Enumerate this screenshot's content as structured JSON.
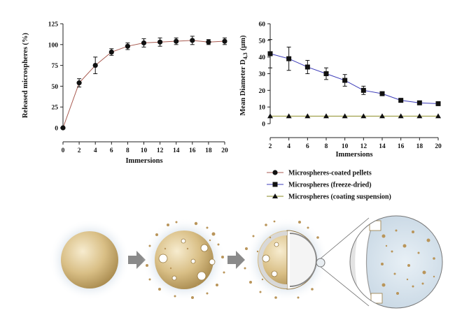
{
  "chart_data": [
    {
      "type": "line",
      "xlabel": "Immersions",
      "ylabel": "Released microspheres (%)",
      "xlim": [
        0,
        20
      ],
      "ylim": [
        0,
        125
      ],
      "xticks": [
        "0",
        "2",
        "4",
        "6",
        "8",
        "10",
        "12",
        "14",
        "16",
        "18",
        "20"
      ],
      "yticks": [
        "0",
        "25",
        "50",
        "75",
        "100",
        "125"
      ],
      "grid": false,
      "series": [
        {
          "name": "Microspheres-coated pellets",
          "marker": "circle",
          "color": "#a85a50",
          "x": [
            0,
            2,
            4,
            6,
            8,
            10,
            12,
            14,
            16,
            18,
            20
          ],
          "y": [
            0,
            54,
            75,
            91,
            98,
            102,
            103,
            104,
            105,
            103,
            104
          ],
          "err": [
            0,
            5,
            10,
            4,
            4,
            5,
            5,
            4,
            5,
            3,
            4
          ]
        }
      ]
    },
    {
      "type": "line",
      "xlabel": "Immersions",
      "ylabel": "Mean Diameter D4,3 (μm)",
      "ylabel_main": "Mean Diameter D",
      "ylabel_sub": "4,3",
      "ylabel_unit": "(μm)",
      "xlim": [
        2,
        20
      ],
      "ylim": [
        0,
        60
      ],
      "xticks": [
        "2",
        "4",
        "6",
        "8",
        "10",
        "12",
        "14",
        "16",
        "18",
        "20"
      ],
      "yticks": [
        "0",
        "10",
        "20",
        "30",
        "40",
        "50",
        "60"
      ],
      "grid": false,
      "series": [
        {
          "name": "Microspheres (freeze-dried)",
          "marker": "square",
          "color": "#3b3bb8",
          "x": [
            2,
            4,
            6,
            8,
            10,
            12,
            14,
            16,
            18,
            20
          ],
          "y": [
            42,
            39,
            34,
            30,
            26,
            20,
            18,
            14,
            12.5,
            12
          ],
          "err": [
            8.5,
            7,
            4,
            3.5,
            3.5,
            2.5,
            1,
            0.8,
            0.5,
            0.5
          ]
        },
        {
          "name": "Microspheres (coating suspension)",
          "marker": "triangle",
          "color": "#8a8a20",
          "x": [
            2,
            4,
            6,
            8,
            10,
            12,
            14,
            16,
            18,
            20
          ],
          "y": [
            4.5,
            4.5,
            4.5,
            4.5,
            4.5,
            4.5,
            4.5,
            4.5,
            4.5,
            4.5
          ],
          "err": [
            0,
            0,
            0,
            0,
            0,
            0,
            0,
            0,
            0,
            0
          ]
        }
      ]
    }
  ],
  "legend": {
    "placement": "below-right-chart",
    "entries": [
      {
        "label": "Microspheres-coated pellets",
        "marker": "circle",
        "color": "#a85a50"
      },
      {
        "label": "Microspheres (freeze-dried)",
        "marker": "square",
        "color": "#3b3bb8"
      },
      {
        "label": "Microspheres (coating suspension)",
        "marker": "triangle",
        "color": "#8a8a20"
      }
    ]
  },
  "illustration": {
    "description_icons": [
      "intact-pellet-icon",
      "arrow-icon",
      "releasing-pellet-icon",
      "arrow-icon",
      "sectioned-pellet-icon",
      "magnified-section-icon"
    ],
    "colors": {
      "pellet": "#c9ab6f",
      "pellet_light": "#f2e6c4",
      "halo": "#d3e0ec",
      "arrow": "#8a8a8a",
      "zoom_bg": "#d9e6f0"
    }
  }
}
